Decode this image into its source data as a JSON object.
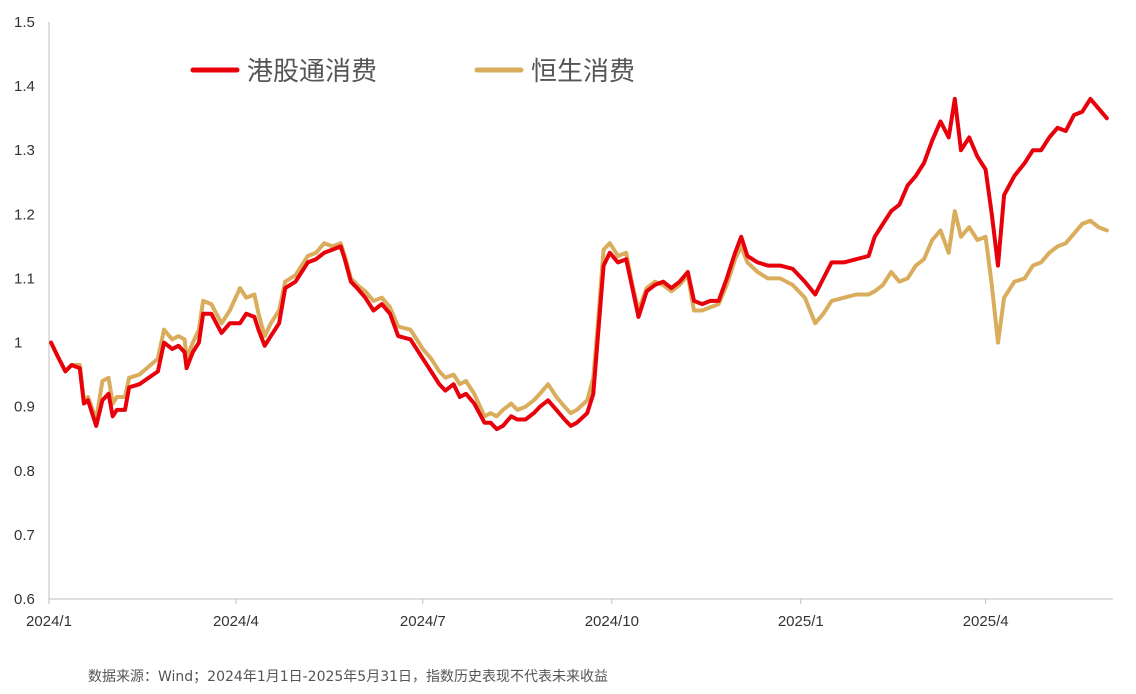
{
  "colors": {
    "series1": "#e8000b",
    "series2": "#d9ad5c",
    "axis": "#bfbfbf"
  },
  "source_note": "数据来源：Wind；2024年1月1日-2025年5月31日，指数历史表现不代表未来收益",
  "chart_data": {
    "type": "line",
    "title": "",
    "xlabel": "",
    "ylabel": "",
    "ylim": [
      0.6,
      1.5
    ],
    "yticks": [
      "0.6",
      "0.7",
      "0.8",
      "0.9",
      "1",
      "1.1",
      "1.2",
      "1.3",
      "1.4",
      "1.5"
    ],
    "xticks": [
      "2024/1",
      "2024/4",
      "2024/7",
      "2024/10",
      "2025/1",
      "2025/4"
    ],
    "xlim": [
      "2024/1",
      "2025/5"
    ],
    "legend_position": "top-left",
    "grid": false,
    "series": [
      {
        "name": "港股通消费",
        "points": [
          [
            "2024/1/2",
            1.0
          ],
          [
            "2024/1/5",
            0.98
          ],
          [
            "2024/1/9",
            0.955
          ],
          [
            "2024/1/12",
            0.965
          ],
          [
            "2024/1/16",
            0.96
          ],
          [
            "2024/1/18",
            0.905
          ],
          [
            "2024/1/20",
            0.91
          ],
          [
            "2024/1/24",
            0.87
          ],
          [
            "2024/1/27",
            0.91
          ],
          [
            "2024/1/30",
            0.92
          ],
          [
            "2024/2/1",
            0.885
          ],
          [
            "2024/2/3",
            0.895
          ],
          [
            "2024/2/7",
            0.895
          ],
          [
            "2024/2/9",
            0.93
          ],
          [
            "2024/2/14",
            0.935
          ],
          [
            "2024/2/23",
            0.955
          ],
          [
            "2024/2/26",
            1.0
          ],
          [
            "2024/3/1",
            0.99
          ],
          [
            "2024/3/4",
            0.995
          ],
          [
            "2024/3/7",
            0.985
          ],
          [
            "2024/3/8",
            0.96
          ],
          [
            "2024/3/11",
            0.985
          ],
          [
            "2024/3/14",
            1.0
          ],
          [
            "2024/3/16",
            1.045
          ],
          [
            "2024/3/20",
            1.045
          ],
          [
            "2024/3/25",
            1.015
          ],
          [
            "2024/3/29",
            1.03
          ],
          [
            "2024/4/3",
            1.03
          ],
          [
            "2024/4/6",
            1.045
          ],
          [
            "2024/4/10",
            1.04
          ],
          [
            "2024/4/12",
            1.02
          ],
          [
            "2024/4/15",
            0.995
          ],
          [
            "2024/4/18",
            1.01
          ],
          [
            "2024/4/22",
            1.03
          ],
          [
            "2024/4/25",
            1.085
          ],
          [
            "2024/4/30",
            1.095
          ],
          [
            "2024/5/6",
            1.125
          ],
          [
            "2024/5/10",
            1.13
          ],
          [
            "2024/5/14",
            1.14
          ],
          [
            "2024/5/18",
            1.145
          ],
          [
            "2024/5/22",
            1.15
          ],
          [
            "2024/5/24",
            1.13
          ],
          [
            "2024/5/27",
            1.095
          ],
          [
            "2024/5/30",
            1.085
          ],
          [
            "2024/6/3",
            1.07
          ],
          [
            "2024/6/7",
            1.05
          ],
          [
            "2024/6/11",
            1.06
          ],
          [
            "2024/6/15",
            1.045
          ],
          [
            "2024/6/19",
            1.01
          ],
          [
            "2024/6/25",
            1.005
          ],
          [
            "2024/7/1",
            0.975
          ],
          [
            "2024/7/5",
            0.955
          ],
          [
            "2024/7/9",
            0.935
          ],
          [
            "2024/7/12",
            0.925
          ],
          [
            "2024/7/16",
            0.935
          ],
          [
            "2024/7/19",
            0.915
          ],
          [
            "2024/7/22",
            0.92
          ],
          [
            "2024/7/26",
            0.905
          ],
          [
            "2024/7/31",
            0.875
          ],
          [
            "2024/8/3",
            0.875
          ],
          [
            "2024/8/6",
            0.865
          ],
          [
            "2024/8/9",
            0.87
          ],
          [
            "2024/8/13",
            0.885
          ],
          [
            "2024/8/16",
            0.88
          ],
          [
            "2024/8/20",
            0.88
          ],
          [
            "2024/8/24",
            0.89
          ],
          [
            "2024/8/27",
            0.9
          ],
          [
            "2024/8/31",
            0.91
          ],
          [
            "2024/9/4",
            0.895
          ],
          [
            "2024/9/8",
            0.88
          ],
          [
            "2024/9/11",
            0.87
          ],
          [
            "2024/9/14",
            0.875
          ],
          [
            "2024/9/19",
            0.89
          ],
          [
            "2024/9/22",
            0.92
          ],
          [
            "2024/9/24",
            1.0
          ],
          [
            "2024/9/27",
            1.12
          ],
          [
            "2024/9/30",
            1.14
          ],
          [
            "2024/10/4",
            1.125
          ],
          [
            "2024/10/8",
            1.13
          ],
          [
            "2024/10/11",
            1.085
          ],
          [
            "2024/10/14",
            1.04
          ],
          [
            "2024/10/18",
            1.08
          ],
          [
            "2024/10/22",
            1.09
          ],
          [
            "2024/10/26",
            1.095
          ],
          [
            "2024/10/30",
            1.085
          ],
          [
            "2024/11/3",
            1.095
          ],
          [
            "2024/11/7",
            1.11
          ],
          [
            "2024/11/10",
            1.065
          ],
          [
            "2024/11/14",
            1.06
          ],
          [
            "2024/11/18",
            1.065
          ],
          [
            "2024/11/22",
            1.065
          ],
          [
            "2024/11/26",
            1.1
          ],
          [
            "2024/11/30",
            1.14
          ],
          [
            "2024/12/3",
            1.165
          ],
          [
            "2024/12/6",
            1.135
          ],
          [
            "2024/12/11",
            1.125
          ],
          [
            "2024/12/16",
            1.12
          ],
          [
            "2024/12/22",
            1.12
          ],
          [
            "2024/12/28",
            1.115
          ],
          [
            "2025/1/3",
            1.095
          ],
          [
            "2025/1/8",
            1.075
          ],
          [
            "2025/1/12",
            1.1
          ],
          [
            "2025/1/16",
            1.125
          ],
          [
            "2025/1/22",
            1.125
          ],
          [
            "2025/1/28",
            1.13
          ],
          [
            "2025/2/3",
            1.135
          ],
          [
            "2025/2/6",
            1.165
          ],
          [
            "2025/2/10",
            1.185
          ],
          [
            "2025/2/14",
            1.205
          ],
          [
            "2025/2/18",
            1.215
          ],
          [
            "2025/2/22",
            1.245
          ],
          [
            "2025/2/26",
            1.26
          ],
          [
            "2025/3/2",
            1.28
          ],
          [
            "2025/3/6",
            1.315
          ],
          [
            "2025/3/10",
            1.345
          ],
          [
            "2025/3/14",
            1.32
          ],
          [
            "2025/3/17",
            1.38
          ],
          [
            "2025/3/20",
            1.3
          ],
          [
            "2025/3/24",
            1.32
          ],
          [
            "2025/3/28",
            1.29
          ],
          [
            "2025/4/1",
            1.27
          ],
          [
            "2025/4/4",
            1.2
          ],
          [
            "2025/4/7",
            1.12
          ],
          [
            "2025/4/10",
            1.23
          ],
          [
            "2025/4/15",
            1.26
          ],
          [
            "2025/4/20",
            1.28
          ],
          [
            "2025/4/24",
            1.3
          ],
          [
            "2025/4/28",
            1.3
          ],
          [
            "2025/5/2",
            1.32
          ],
          [
            "2025/5/6",
            1.335
          ],
          [
            "2025/5/10",
            1.33
          ],
          [
            "2025/5/14",
            1.355
          ],
          [
            "2025/5/18",
            1.36
          ],
          [
            "2025/5/22",
            1.38
          ],
          [
            "2025/5/26",
            1.365
          ],
          [
            "2025/5/30",
            1.35
          ]
        ]
      },
      {
        "name": "恒生消费",
        "points": [
          [
            "2024/1/2",
            1.0
          ],
          [
            "2024/1/5",
            0.98
          ],
          [
            "2024/1/9",
            0.955
          ],
          [
            "2024/1/12",
            0.965
          ],
          [
            "2024/1/16",
            0.965
          ],
          [
            "2024/1/18",
            0.91
          ],
          [
            "2024/1/20",
            0.915
          ],
          [
            "2024/1/24",
            0.88
          ],
          [
            "2024/1/27",
            0.94
          ],
          [
            "2024/1/30",
            0.945
          ],
          [
            "2024/2/1",
            0.905
          ],
          [
            "2024/2/3",
            0.915
          ],
          [
            "2024/2/7",
            0.915
          ],
          [
            "2024/2/9",
            0.945
          ],
          [
            "2024/2/14",
            0.95
          ],
          [
            "2024/2/23",
            0.975
          ],
          [
            "2024/2/26",
            1.02
          ],
          [
            "2024/3/1",
            1.005
          ],
          [
            "2024/3/4",
            1.01
          ],
          [
            "2024/3/7",
            1.005
          ],
          [
            "2024/3/8",
            0.975
          ],
          [
            "2024/3/11",
            1.0
          ],
          [
            "2024/3/14",
            1.02
          ],
          [
            "2024/3/16",
            1.065
          ],
          [
            "2024/3/20",
            1.06
          ],
          [
            "2024/3/25",
            1.03
          ],
          [
            "2024/3/29",
            1.05
          ],
          [
            "2024/4/3",
            1.085
          ],
          [
            "2024/4/6",
            1.07
          ],
          [
            "2024/4/10",
            1.075
          ],
          [
            "2024/4/12",
            1.045
          ],
          [
            "2024/4/15",
            1.01
          ],
          [
            "2024/4/18",
            1.03
          ],
          [
            "2024/4/22",
            1.05
          ],
          [
            "2024/4/25",
            1.095
          ],
          [
            "2024/4/30",
            1.105
          ],
          [
            "2024/5/6",
            1.135
          ],
          [
            "2024/5/10",
            1.14
          ],
          [
            "2024/5/14",
            1.155
          ],
          [
            "2024/5/18",
            1.15
          ],
          [
            "2024/5/22",
            1.155
          ],
          [
            "2024/5/24",
            1.135
          ],
          [
            "2024/5/27",
            1.1
          ],
          [
            "2024/5/30",
            1.09
          ],
          [
            "2024/6/3",
            1.08
          ],
          [
            "2024/6/7",
            1.065
          ],
          [
            "2024/6/11",
            1.07
          ],
          [
            "2024/6/15",
            1.055
          ],
          [
            "2024/6/19",
            1.025
          ],
          [
            "2024/6/25",
            1.02
          ],
          [
            "2024/7/1",
            0.99
          ],
          [
            "2024/7/5",
            0.975
          ],
          [
            "2024/7/9",
            0.955
          ],
          [
            "2024/7/12",
            0.945
          ],
          [
            "2024/7/16",
            0.95
          ],
          [
            "2024/7/19",
            0.935
          ],
          [
            "2024/7/22",
            0.94
          ],
          [
            "2024/7/26",
            0.92
          ],
          [
            "2024/7/31",
            0.885
          ],
          [
            "2024/8/3",
            0.89
          ],
          [
            "2024/8/6",
            0.885
          ],
          [
            "2024/8/9",
            0.895
          ],
          [
            "2024/8/13",
            0.905
          ],
          [
            "2024/8/16",
            0.895
          ],
          [
            "2024/8/20",
            0.9
          ],
          [
            "2024/8/24",
            0.91
          ],
          [
            "2024/8/27",
            0.92
          ],
          [
            "2024/8/31",
            0.935
          ],
          [
            "2024/9/4",
            0.915
          ],
          [
            "2024/9/8",
            0.9
          ],
          [
            "2024/9/11",
            0.89
          ],
          [
            "2024/9/14",
            0.895
          ],
          [
            "2024/9/19",
            0.91
          ],
          [
            "2024/9/22",
            0.945
          ],
          [
            "2024/9/24",
            1.02
          ],
          [
            "2024/9/27",
            1.145
          ],
          [
            "2024/9/30",
            1.155
          ],
          [
            "2024/10/4",
            1.135
          ],
          [
            "2024/10/8",
            1.14
          ],
          [
            "2024/10/11",
            1.09
          ],
          [
            "2024/10/14",
            1.05
          ],
          [
            "2024/10/18",
            1.085
          ],
          [
            "2024/10/22",
            1.095
          ],
          [
            "2024/10/26",
            1.09
          ],
          [
            "2024/10/30",
            1.08
          ],
          [
            "2024/11/3",
            1.09
          ],
          [
            "2024/11/7",
            1.105
          ],
          [
            "2024/11/10",
            1.05
          ],
          [
            "2024/11/14",
            1.05
          ],
          [
            "2024/11/18",
            1.055
          ],
          [
            "2024/11/22",
            1.06
          ],
          [
            "2024/11/26",
            1.09
          ],
          [
            "2024/11/30",
            1.13
          ],
          [
            "2024/12/3",
            1.15
          ],
          [
            "2024/12/6",
            1.125
          ],
          [
            "2024/12/11",
            1.11
          ],
          [
            "2024/12/16",
            1.1
          ],
          [
            "2024/12/22",
            1.1
          ],
          [
            "2024/12/28",
            1.09
          ],
          [
            "2025/1/3",
            1.07
          ],
          [
            "2025/1/8",
            1.03
          ],
          [
            "2025/1/12",
            1.045
          ],
          [
            "2025/1/16",
            1.065
          ],
          [
            "2025/1/22",
            1.07
          ],
          [
            "2025/1/28",
            1.075
          ],
          [
            "2025/2/3",
            1.075
          ],
          [
            "2025/2/6",
            1.08
          ],
          [
            "2025/2/10",
            1.09
          ],
          [
            "2025/2/14",
            1.11
          ],
          [
            "2025/2/18",
            1.095
          ],
          [
            "2025/2/22",
            1.1
          ],
          [
            "2025/2/26",
            1.12
          ],
          [
            "2025/3/2",
            1.13
          ],
          [
            "2025/3/6",
            1.16
          ],
          [
            "2025/3/10",
            1.175
          ],
          [
            "2025/3/14",
            1.14
          ],
          [
            "2025/3/17",
            1.205
          ],
          [
            "2025/3/20",
            1.165
          ],
          [
            "2025/3/24",
            1.18
          ],
          [
            "2025/3/28",
            1.16
          ],
          [
            "2025/4/1",
            1.165
          ],
          [
            "2025/4/4",
            1.09
          ],
          [
            "2025/4/7",
            1.0
          ],
          [
            "2025/4/10",
            1.07
          ],
          [
            "2025/4/15",
            1.095
          ],
          [
            "2025/4/20",
            1.1
          ],
          [
            "2025/4/24",
            1.12
          ],
          [
            "2025/4/28",
            1.125
          ],
          [
            "2025/5/2",
            1.14
          ],
          [
            "2025/5/6",
            1.15
          ],
          [
            "2025/5/10",
            1.155
          ],
          [
            "2025/5/14",
            1.17
          ],
          [
            "2025/5/18",
            1.185
          ],
          [
            "2025/5/22",
            1.19
          ],
          [
            "2025/5/26",
            1.18
          ],
          [
            "2025/5/30",
            1.175
          ]
        ]
      }
    ]
  }
}
